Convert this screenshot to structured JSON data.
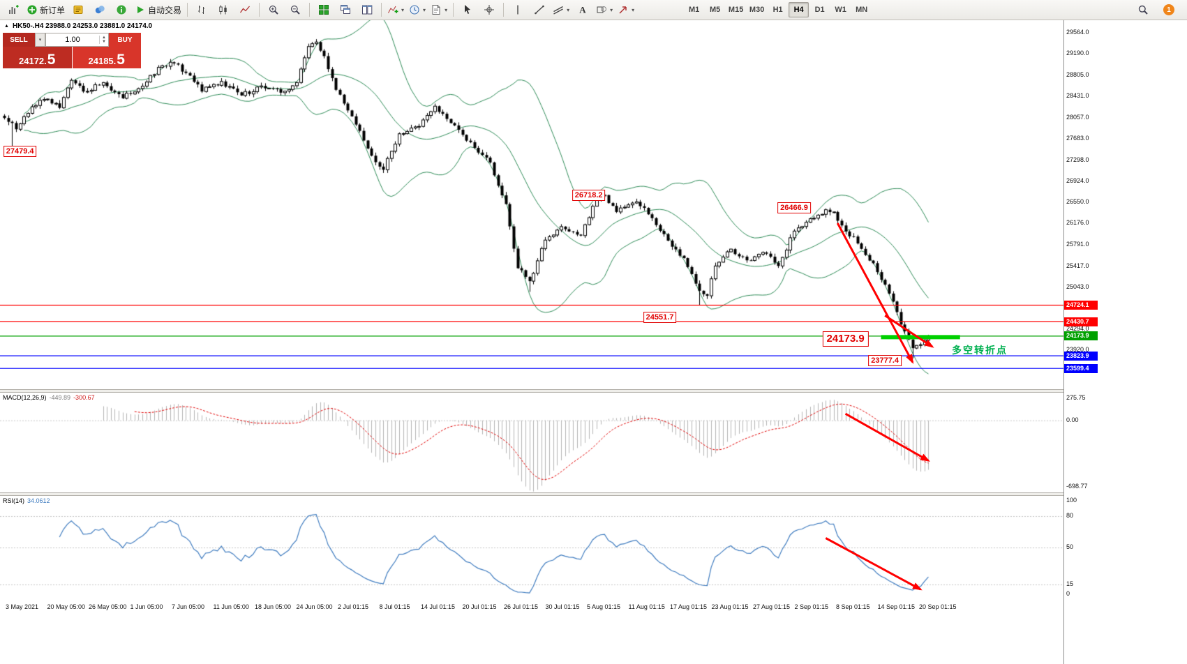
{
  "toolbar": {
    "new_order_label": "新订单",
    "autotrading_label": "自动交易",
    "timeframes": [
      "M1",
      "M5",
      "M15",
      "M30",
      "H1",
      "H4",
      "D1",
      "W1",
      "MN"
    ],
    "active_timeframe": "H4",
    "notification_badge": "1",
    "icon_names": [
      "new-chart",
      "new-order",
      "metaeditor",
      "market-watch",
      "community",
      "autotrading",
      "bar-chart",
      "candlestick-chart",
      "line-chart",
      "zoom-in",
      "zoom-out",
      "tile-windows",
      "cascade-windows",
      "tile-vertical",
      "indicators",
      "periods",
      "templates",
      "cursor",
      "crosshair",
      "vertical-line",
      "trendline",
      "channels",
      "text-tool",
      "shapes",
      "arrows-tool",
      "search",
      "notifications"
    ]
  },
  "quote_panel": {
    "sell_label": "SELL",
    "buy_label": "BUY",
    "lot_value": "1.00",
    "bid": "24172.5",
    "ask": "24185.5",
    "sell_price_main": "24172.",
    "sell_price_big": "5",
    "buy_price_main": "24185.",
    "buy_price_big": "5"
  },
  "chart_data": {
    "type": "candlestick",
    "symbol": "HK50-",
    "timeframe": "H4",
    "symbol_header": "HK50-.H4  23988.0 24253.0 23881.0 24174.0",
    "ohlc": {
      "open": 23988.0,
      "high": 24253.0,
      "low": 23881.0,
      "close": 24174.0
    },
    "last_close": 24174.0,
    "candle_count": 235,
    "close_path": [
      [
        0,
        28050
      ],
      [
        3,
        27850
      ],
      [
        7,
        28250
      ],
      [
        10,
        28380
      ],
      [
        14,
        28230
      ],
      [
        17,
        28720
      ],
      [
        20,
        28520
      ],
      [
        25,
        28680
      ],
      [
        30,
        28400
      ],
      [
        36,
        28690
      ],
      [
        40,
        28980
      ],
      [
        43,
        29020
      ],
      [
        46,
        28850
      ],
      [
        50,
        28520
      ],
      [
        55,
        28700
      ],
      [
        60,
        28450
      ],
      [
        65,
        28620
      ],
      [
        70,
        28500
      ],
      [
        74,
        28680
      ],
      [
        77,
        29320
      ],
      [
        79,
        29400
      ],
      [
        81,
        29150
      ],
      [
        84,
        28550
      ],
      [
        88,
        28080
      ],
      [
        91,
        27650
      ],
      [
        93,
        27380
      ],
      [
        96,
        27130
      ],
      [
        100,
        27770
      ],
      [
        105,
        27900
      ],
      [
        109,
        28260
      ],
      [
        113,
        27960
      ],
      [
        118,
        27620
      ],
      [
        123,
        27260
      ],
      [
        127,
        26520
      ],
      [
        130,
        25380
      ],
      [
        133,
        25150
      ],
      [
        137,
        25880
      ],
      [
        141,
        26120
      ],
      [
        146,
        25960
      ],
      [
        150,
        26600
      ],
      [
        152,
        26680
      ],
      [
        155,
        26380
      ],
      [
        160,
        26560
      ],
      [
        164,
        26270
      ],
      [
        168,
        25870
      ],
      [
        172,
        25560
      ],
      [
        176,
        24980
      ],
      [
        178,
        24890
      ],
      [
        180,
        25420
      ],
      [
        184,
        25720
      ],
      [
        188,
        25520
      ],
      [
        192,
        25660
      ],
      [
        196,
        25420
      ],
      [
        200,
        26040
      ],
      [
        204,
        26260
      ],
      [
        208,
        26420
      ],
      [
        210,
        26380
      ],
      [
        212,
        26140
      ],
      [
        216,
        25820
      ],
      [
        220,
        25470
      ],
      [
        224,
        24930
      ],
      [
        227,
        24380
      ],
      [
        230,
        23960
      ],
      [
        232,
        24020
      ],
      [
        234,
        24174
      ]
    ],
    "wick_points": [
      {
        "i": 2,
        "low": 27500
      },
      {
        "i": 79,
        "high": 29440
      },
      {
        "i": 133,
        "low": 24960
      },
      {
        "i": 176,
        "low": 24720
      },
      {
        "i": 230,
        "low": 23777.4
      }
    ],
    "price_axis_ticks": [
      "29564.0",
      "29190.0",
      "28805.0",
      "28431.0",
      "28057.0",
      "27683.0",
      "27298.0",
      "26924.0",
      "26550.0",
      "26176.0",
      "25791.0",
      "25417.0",
      "25043.0",
      "24669.0",
      "24294.0",
      "23920.0",
      "23546.0"
    ],
    "levels": [
      {
        "label": "24724.1",
        "price": 24724.1,
        "color": "#ff0000"
      },
      {
        "label": "24430.7",
        "price": 24430.7,
        "color": "#ff0000"
      },
      {
        "label": "24173.9",
        "price": 24173.9,
        "color": "#00a000"
      },
      {
        "label": "23823.9",
        "price": 23823.9,
        "color": "#0000ff"
      },
      {
        "label": "23599.4",
        "price": 23599.4,
        "color": "#0000ff"
      }
    ],
    "indicators": {
      "bollinger": {
        "period": 20,
        "deviation": 2,
        "color": "#2e8b57"
      },
      "macd": {
        "name_label": "MACD(12,26,9)",
        "main_value": "-449.89",
        "signal_value": "-300.67",
        "scale_max": 275.75,
        "scale_min": -698.77,
        "scale_max_label": "275.75",
        "zero_label": "0.00",
        "scale_min_label": "-698.77",
        "histogram_color": "#b4b4b4",
        "signal_color": "#e00000"
      },
      "rsi": {
        "name_label": "RSI(14)",
        "value": "34.0612",
        "levels": [
          80,
          50,
          15
        ],
        "scale_labels": [
          "100",
          "80",
          "50",
          "15",
          "0"
        ],
        "line_color": "#3e7bbf"
      }
    },
    "time_axis": [
      "3 May 2021",
      "20 May 05:00",
      "26 May 05:00",
      "1 Jun 05:00",
      "7 Jun 05:00",
      "11 Jun 05:00",
      "18 Jun 05:00",
      "24 Jun 05:00",
      "2 Jul 01:15",
      "8 Jul 01:15",
      "14 Jul 01:15",
      "20 Jul 01:15",
      "26 Jul 01:15",
      "30 Jul 01:15",
      "5 Aug 01:15",
      "11 Aug 01:15",
      "17 Aug 01:15",
      "23 Aug 01:15",
      "27 Aug 01:15",
      "2 Sep 01:15",
      "8 Sep 01:15",
      "14 Sep 01:15",
      "20 Sep 01:15"
    ],
    "annotations": {
      "price_labels": [
        {
          "text": "27479.4",
          "i": 4,
          "price": 27460,
          "large": false
        },
        {
          "text": "26718.2",
          "i": 148,
          "price": 26680,
          "large": false
        },
        {
          "text": "26466.9",
          "i": 200,
          "price": 26450,
          "large": false
        },
        {
          "text": "24551.7",
          "i": 166,
          "price": 24510,
          "large": false
        },
        {
          "text": "24173.9",
          "i": 213,
          "price": 24120,
          "large": true
        },
        {
          "text": "23777.4",
          "i": 223,
          "price": 23740,
          "large": false
        }
      ],
      "turning_point_label": {
        "text": "多空转折点",
        "i": 247,
        "price": 23920,
        "color": "#00b050"
      },
      "support_segment": {
        "i1": 222,
        "i2": 242,
        "price": 24155,
        "color": "#00d000"
      },
      "arrow_color": "#ff0000",
      "trend_arrows": [
        {
          "panel": "main",
          "i1": 211,
          "p1": 26180,
          "i2": 230,
          "p2": 23710
        },
        {
          "panel": "main",
          "i1": 223,
          "p1": 24540,
          "i2": 235,
          "p2": 23985
        },
        {
          "panel": "macd",
          "i1": 213,
          "p1": 65,
          "i2": 234,
          "p2": -390
        },
        {
          "panel": "rsi",
          "i1": 208,
          "p1": 59,
          "i2": 232,
          "p2": 10
        }
      ]
    }
  }
}
